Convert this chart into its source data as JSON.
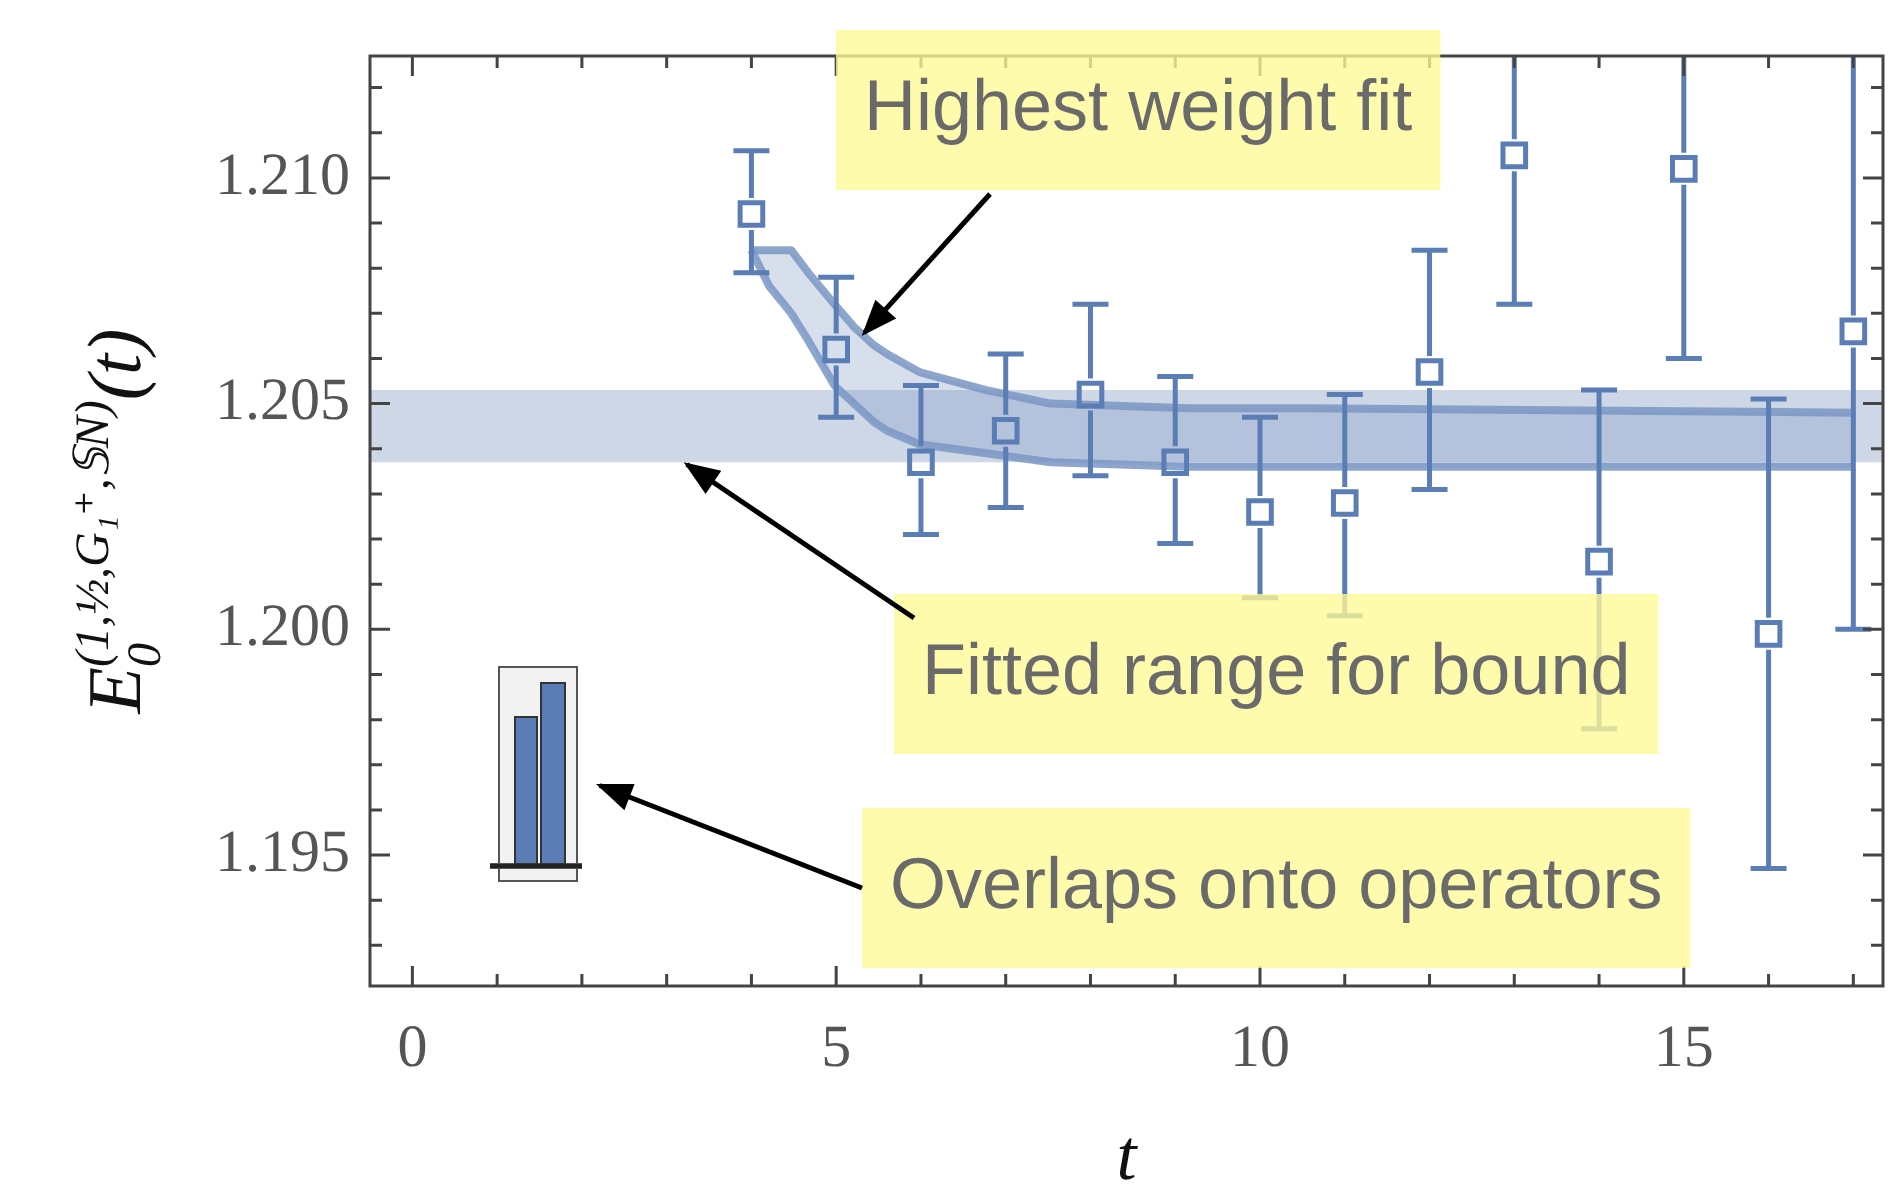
{
  "chart_data": {
    "type": "scatter",
    "xlabel": "t",
    "ylabel": "E$_{0}$$^{(1,½,G₁⁺,𝕊N)}$(t)",
    "xlim": [
      -0.5,
      17.35
    ],
    "ylim": [
      1.1921,
      1.2127
    ],
    "xticks": [
      0,
      {
        "value": 1,
        "label": null
      },
      {
        "value": 2,
        "label": null
      },
      {
        "value": 3,
        "label": null
      },
      {
        "value": 4,
        "label": null
      },
      5,
      {
        "value": 6,
        "label": null
      },
      {
        "value": 7,
        "label": null
      },
      {
        "value": 8,
        "label": null
      },
      {
        "value": 9,
        "label": null
      },
      10,
      {
        "value": 11,
        "label": null
      },
      {
        "value": 12,
        "label": null
      },
      {
        "value": 13,
        "label": null
      },
      {
        "value": 14,
        "label": null
      },
      15,
      {
        "value": 16,
        "label": null
      },
      {
        "value": 17,
        "label": null
      }
    ],
    "yticks": [
      {
        "value": 1.193,
        "label": null
      },
      {
        "value": 1.194,
        "label": null
      },
      1.195,
      {
        "value": 1.196,
        "label": null
      },
      {
        "value": 1.197,
        "label": null
      },
      {
        "value": 1.198,
        "label": null
      },
      {
        "value": 1.199,
        "label": null
      },
      {
        "value": 1.2,
        "label": "1.200"
      },
      {
        "value": 1.201,
        "label": null
      },
      {
        "value": 1.202,
        "label": null
      },
      {
        "value": 1.203,
        "label": null
      },
      {
        "value": 1.204,
        "label": null
      },
      1.205,
      {
        "value": 1.206,
        "label": null
      },
      {
        "value": 1.207,
        "label": null
      },
      {
        "value": 1.208,
        "label": null
      },
      {
        "value": 1.209,
        "label": null
      },
      {
        "value": 1.21,
        "label": "1.210"
      },
      {
        "value": 1.211,
        "label": null
      },
      {
        "value": 1.212,
        "label": null
      }
    ],
    "grid": false,
    "legend": false,
    "marker": "square",
    "series": [
      {
        "type": "scatter",
        "color": "#5a7db5",
        "x": [
          4,
          5,
          6,
          7,
          8,
          9,
          10,
          11,
          12,
          13,
          14,
          15,
          16,
          17
        ],
        "values": [
          1.2092,
          1.2062,
          1.2037,
          1.2044,
          1.2052,
          1.2037,
          1.2026,
          1.2028,
          1.2057,
          1.2105,
          1.2015,
          1.2102,
          1.1999,
          1.2066
        ],
        "errors": [
          [
            1.2079,
            1.2106
          ],
          [
            1.2047,
            1.2078
          ],
          [
            1.2021,
            1.2054
          ],
          [
            1.2027,
            1.2061
          ],
          [
            1.2034,
            1.2072
          ],
          [
            1.2019,
            1.2056
          ],
          [
            1.2007,
            1.2047
          ],
          [
            1.2003,
            1.2052
          ],
          [
            1.2031,
            1.2084
          ],
          [
            1.2072,
            1.2127
          ],
          [
            1.1978,
            1.2053
          ],
          [
            1.206,
            1.2127
          ],
          [
            1.1947,
            1.2051
          ],
          [
            1.2,
            1.2127
          ]
        ]
      },
      {
        "type": "line",
        "marker": "none",
        "color": "#7a96c4",
        "x": [
          4,
          4.21,
          4.47,
          4.67,
          4.98,
          5.21,
          5.44,
          5.6,
          5.98,
          6.77,
          7.53,
          9.16,
          10.56,
          17
        ],
        "values": [
          1.2084,
          1.2084,
          1.2084,
          1.2079,
          1.2072,
          1.2067,
          1.2063,
          1.2061,
          1.2057,
          1.2053,
          1.205,
          1.2049,
          1.2049,
          1.2048
        ]
      },
      {
        "type": "line",
        "marker": "none",
        "color": "#7a96c4",
        "x": [
          4,
          4.21,
          4.47,
          4.67,
          4.98,
          5.21,
          5.44,
          5.6,
          5.98,
          6.77,
          7.53,
          9.16,
          10.56,
          17
        ],
        "values": [
          1.2084,
          1.2076,
          1.207,
          1.2064,
          1.2054,
          1.205,
          1.2046,
          1.2044,
          1.2041,
          1.2039,
          1.2037,
          1.2036,
          1.2036,
          1.2036
        ],
        "upper": [
          1.2084,
          1.2084,
          1.2084,
          1.2079,
          1.2072,
          1.2067,
          1.2063,
          1.2061,
          1.2057,
          1.2053,
          1.205,
          1.2049,
          1.2049,
          1.2048
        ],
        "lower": [
          1.2084,
          1.2076,
          1.207,
          1.2064,
          1.2054,
          1.205,
          1.2046,
          1.2044,
          1.2041,
          1.2039,
          1.2037,
          1.2036,
          1.2036,
          1.2036
        ]
      }
    ],
    "bands": [
      {
        "axis": "y",
        "from": 1.2037,
        "to": 1.2053,
        "color": "#cdd7e6"
      }
    ],
    "annotations": [
      {
        "text": "Highest weight fit",
        "x": 5.3,
        "y": 1.2065
      },
      {
        "text": "Fitted range for bound",
        "x": 3.2,
        "y": 1.2037
      },
      "Overlaps onto operators"
    ]
  }
}
